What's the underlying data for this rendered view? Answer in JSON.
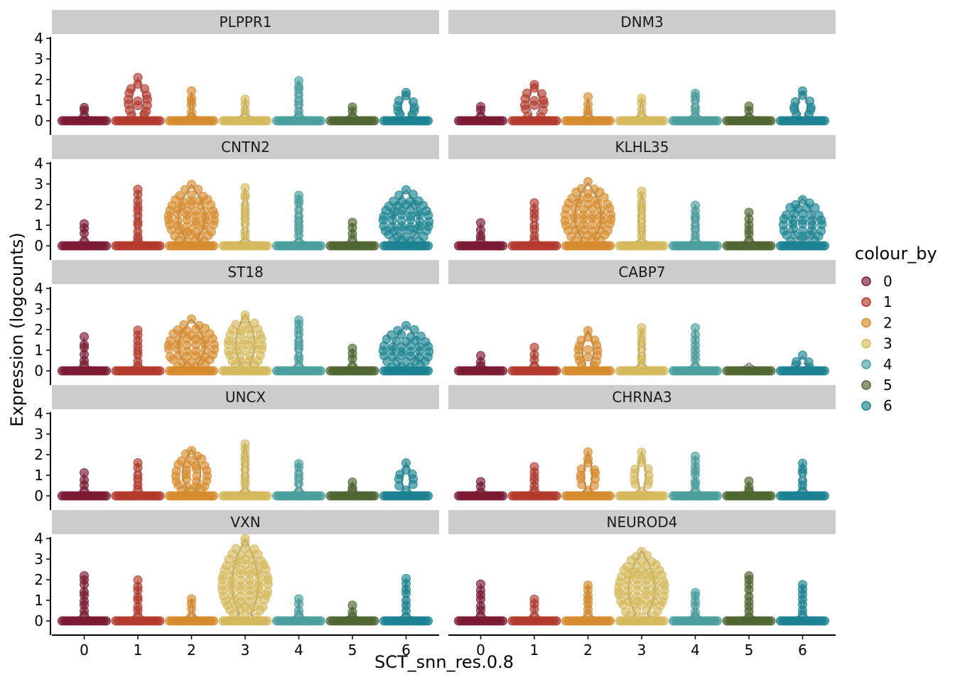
{
  "chart_data": {
    "type": "violin",
    "xlabel": "SCT_snn_res.0.8",
    "ylabel": "Expression (logcounts)",
    "categories": [
      "0",
      "1",
      "2",
      "3",
      "4",
      "5",
      "6"
    ],
    "ylim": [
      0,
      4
    ],
    "yticks": [
      0,
      1,
      2,
      3,
      4
    ],
    "grid": false,
    "legend": {
      "title": "colour_by",
      "position": "right",
      "entries": [
        "0",
        "1",
        "2",
        "3",
        "4",
        "5",
        "6"
      ]
    },
    "colors": [
      "#7a1a33",
      "#b23a2c",
      "#d68b2c",
      "#d4b95c",
      "#4a9e9e",
      "#4f6530",
      "#1a8290"
    ],
    "facets": [
      {
        "gene": "PLPPR1",
        "max": [
          0.7,
          2.05,
          1.4,
          1.1,
          1.95,
          0.7,
          1.4
        ],
        "width": [
          0.05,
          0.4,
          0.1,
          0.1,
          0.2,
          0.05,
          0.35
        ]
      },
      {
        "gene": "DNM3",
        "max": [
          0.7,
          1.8,
          1.1,
          1.1,
          1.4,
          0.7,
          1.4
        ],
        "width": [
          0.05,
          0.4,
          0.1,
          0.1,
          0.2,
          0.05,
          0.35
        ]
      },
      {
        "gene": "CNTN2",
        "max": [
          1.1,
          2.7,
          2.95,
          2.8,
          2.5,
          1.1,
          2.7
        ],
        "width": [
          0.05,
          0.15,
          0.95,
          0.2,
          0.2,
          0.05,
          0.95
        ]
      },
      {
        "gene": "KLHL35",
        "max": [
          1.1,
          2.1,
          3.05,
          2.65,
          2.0,
          1.6,
          2.3
        ],
        "width": [
          0.05,
          0.15,
          0.95,
          0.2,
          0.2,
          0.05,
          0.8
        ]
      },
      {
        "gene": "ST18",
        "max": [
          1.6,
          1.95,
          2.5,
          2.75,
          2.5,
          1.1,
          2.2
        ],
        "width": [
          0.05,
          0.15,
          0.95,
          0.7,
          0.2,
          0.05,
          0.95
        ]
      },
      {
        "gene": "CABP7",
        "max": [
          0.7,
          1.1,
          1.95,
          2.05,
          2.05,
          0.0,
          0.7
        ],
        "width": [
          0.05,
          0.05,
          0.4,
          0.2,
          0.05,
          0.05,
          0.3
        ]
      },
      {
        "gene": "UNCX",
        "max": [
          1.1,
          1.6,
          2.25,
          2.55,
          1.6,
          0.7,
          1.6
        ],
        "width": [
          0.05,
          0.2,
          0.65,
          0.2,
          0.2,
          0.05,
          0.3
        ]
      },
      {
        "gene": "CHRNA3",
        "max": [
          0.7,
          1.4,
          2.1,
          2.1,
          1.95,
          0.7,
          1.6
        ],
        "width": [
          0.05,
          0.05,
          0.3,
          0.3,
          0.05,
          0.05,
          0.2
        ]
      },
      {
        "gene": "VXN",
        "max": [
          2.2,
          1.95,
          1.1,
          3.95,
          1.1,
          0.7,
          2.05
        ],
        "width": [
          0.05,
          0.05,
          0.1,
          0.95,
          0.05,
          0.05,
          0.1
        ]
      },
      {
        "gene": "NEUROD4",
        "max": [
          1.8,
          1.1,
          1.8,
          3.4,
          1.4,
          2.2,
          1.8
        ],
        "width": [
          0.05,
          0.05,
          0.1,
          0.95,
          0.05,
          0.1,
          0.1
        ]
      }
    ]
  }
}
